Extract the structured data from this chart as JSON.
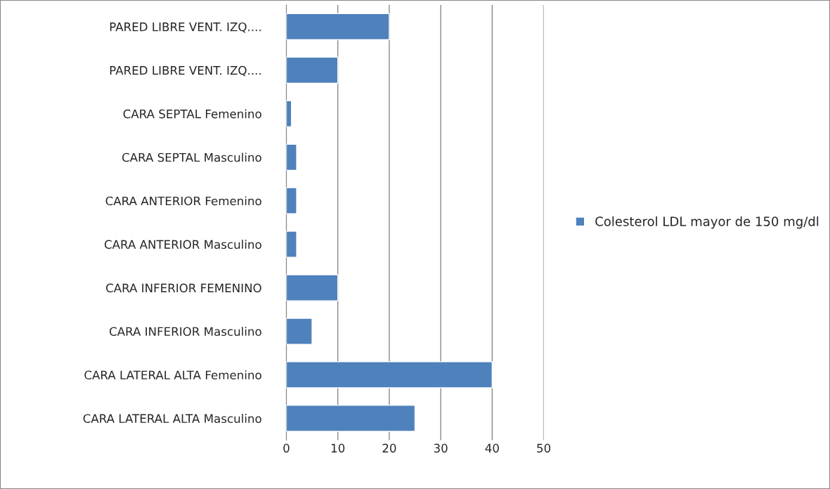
{
  "chart_data": {
    "type": "bar",
    "orientation": "horizontal",
    "categories": [
      "PARED LIBRE VENT. IZQ....",
      "PARED LIBRE VENT. IZQ....",
      "CARA SEPTAL Femenino",
      "CARA SEPTAL Masculino",
      "CARA ANTERIOR Femenino",
      "CARA ANTERIOR Masculino",
      "CARA INFERIOR FEMENINO",
      "CARA INFERIOR Masculino",
      "CARA LATERAL ALTA Femenino",
      "CARA LATERAL ALTA Masculino"
    ],
    "series": [
      {
        "name": "Colesterol LDL mayor de 150 mg/dl",
        "color": "#4f81bd",
        "values": [
          20,
          10,
          1,
          2,
          2,
          2,
          10,
          5,
          40,
          25
        ]
      }
    ],
    "xlim": [
      0,
      50
    ],
    "xticks": [
      0,
      10,
      20,
      30,
      40,
      50
    ],
    "grid": "x",
    "legend": "right"
  }
}
